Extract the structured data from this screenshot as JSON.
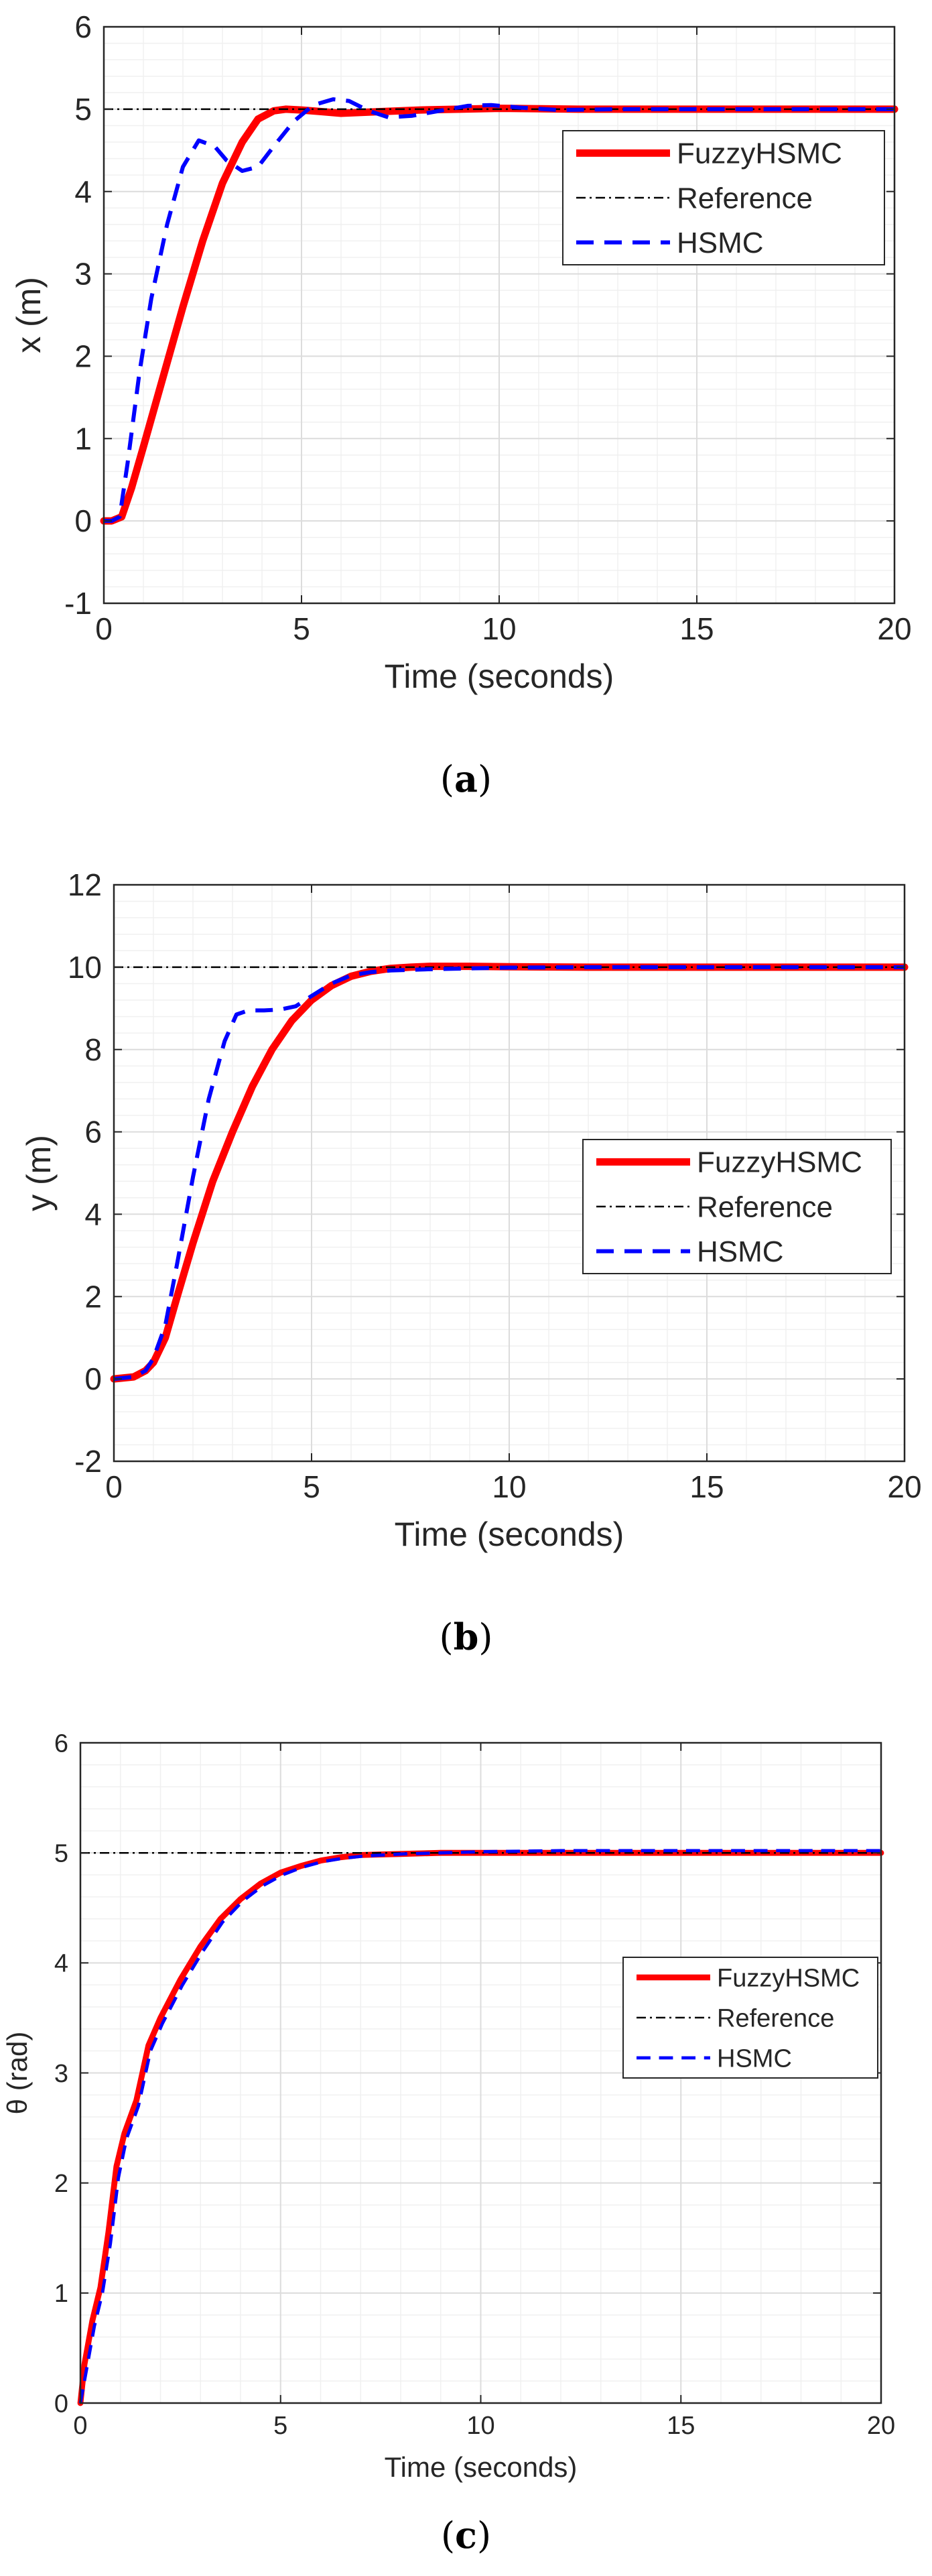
{
  "chart_data": [
    {
      "type": "line",
      "caption_letter": "a",
      "xlabel": "Time (seconds)",
      "ylabel": "x (m)",
      "xlim": [
        0,
        20
      ],
      "ylim": [
        -1,
        6
      ],
      "xticks": [
        "0",
        "5",
        "10",
        "15",
        "20"
      ],
      "yticks": [
        "-1",
        "0",
        "1",
        "2",
        "3",
        "4",
        "5",
        "6"
      ],
      "grid": true,
      "legend_position": "top-right",
      "series": [
        {
          "name": "FuzzyHSMC",
          "color": "#ff0000",
          "style": "solid",
          "x": [
            0,
            0.2,
            0.45,
            0.7,
            1.0,
            1.5,
            2.0,
            2.5,
            3.0,
            3.5,
            3.9,
            4.3,
            4.6,
            5.0,
            5.5,
            6.0,
            6.5,
            7.0,
            8.0,
            9.0,
            10.0,
            12.0,
            15.0,
            20.0
          ],
          "y": [
            0,
            0.0,
            0.05,
            0.4,
            0.9,
            1.75,
            2.6,
            3.4,
            4.1,
            4.6,
            4.88,
            4.98,
            5.0,
            4.99,
            4.97,
            4.95,
            4.96,
            4.97,
            4.99,
            5.0,
            5.01,
            5.0,
            5.0,
            5.0
          ]
        },
        {
          "name": "Reference",
          "color": "#000000",
          "style": "dashdot",
          "x": [
            0,
            20
          ],
          "y": [
            5,
            5
          ]
        },
        {
          "name": "HSMC",
          "color": "#0000ff",
          "style": "dashed",
          "x": [
            0,
            0.2,
            0.4,
            0.6,
            0.9,
            1.2,
            1.6,
            2.0,
            2.4,
            2.8,
            3.1,
            3.5,
            3.9,
            4.3,
            4.8,
            5.3,
            5.8,
            6.2,
            6.7,
            7.2,
            7.8,
            8.5,
            9.2,
            9.8,
            10.5,
            11.5,
            13.0,
            15.0,
            20.0
          ],
          "y": [
            0,
            0.0,
            0.05,
            0.7,
            1.8,
            2.7,
            3.6,
            4.3,
            4.62,
            4.55,
            4.38,
            4.25,
            4.3,
            4.55,
            4.85,
            5.05,
            5.12,
            5.1,
            4.98,
            4.9,
            4.92,
            4.98,
            5.04,
            5.05,
            5.02,
            4.99,
            5.0,
            5.0,
            5.0
          ]
        }
      ]
    },
    {
      "type": "line",
      "caption_letter": "b",
      "xlabel": "Time (seconds)",
      "ylabel": "y (m)",
      "xlim": [
        0,
        20
      ],
      "ylim": [
        -2,
        12
      ],
      "xticks": [
        "0",
        "5",
        "10",
        "15",
        "20"
      ],
      "yticks": [
        "-2",
        "0",
        "2",
        "4",
        "6",
        "8",
        "10",
        "12"
      ],
      "grid": true,
      "legend_position": "right",
      "series": [
        {
          "name": "FuzzyHSMC",
          "color": "#ff0000",
          "style": "solid",
          "x": [
            0,
            0.5,
            0.8,
            1.0,
            1.3,
            1.6,
            2.0,
            2.5,
            3.0,
            3.5,
            4.0,
            4.5,
            5.0,
            5.5,
            6.0,
            6.5,
            7.0,
            7.5,
            8.0,
            9.0,
            10.0,
            12.0,
            15.0,
            20.0
          ],
          "y": [
            0,
            0.05,
            0.2,
            0.4,
            1.0,
            2.0,
            3.3,
            4.8,
            6.0,
            7.1,
            8.0,
            8.7,
            9.2,
            9.55,
            9.78,
            9.9,
            9.97,
            10.0,
            10.02,
            10.02,
            10.01,
            10.0,
            10.0,
            10.0
          ]
        },
        {
          "name": "Reference",
          "color": "#000000",
          "style": "dashdot",
          "x": [
            0,
            20
          ],
          "y": [
            10,
            10
          ]
        },
        {
          "name": "HSMC",
          "color": "#0000ff",
          "style": "dashed",
          "x": [
            0,
            0.5,
            0.8,
            1.0,
            1.3,
            1.6,
            2.0,
            2.4,
            2.8,
            3.1,
            3.4,
            3.8,
            4.2,
            4.6,
            5.0,
            5.5,
            6.0,
            6.5,
            7.0,
            8.0,
            9.0,
            10.0,
            12.0,
            15.0,
            20.0
          ],
          "y": [
            0,
            0.05,
            0.2,
            0.5,
            1.3,
            2.8,
            4.9,
            6.8,
            8.2,
            8.85,
            8.95,
            8.95,
            8.97,
            9.05,
            9.3,
            9.6,
            9.8,
            9.88,
            9.92,
            9.95,
            9.97,
            9.99,
            10.0,
            10.0,
            10.0
          ]
        }
      ]
    },
    {
      "type": "line",
      "caption_letter": "c",
      "xlabel": "Time (seconds)",
      "ylabel": "θ (rad)",
      "xlim": [
        0,
        20
      ],
      "ylim": [
        0,
        6
      ],
      "xticks": [
        "0",
        "5",
        "10",
        "15",
        "20"
      ],
      "yticks": [
        "0",
        "1",
        "2",
        "3",
        "4",
        "5",
        "6"
      ],
      "grid": true,
      "legend_position": "right",
      "series": [
        {
          "name": "FuzzyHSMC",
          "color": "#ff0000",
          "style": "solid",
          "x": [
            0,
            0.1,
            0.3,
            0.5,
            0.7,
            0.9,
            1.1,
            1.4,
            1.7,
            2.0,
            2.5,
            3.0,
            3.5,
            4.0,
            4.5,
            5.0,
            5.5,
            6.0,
            6.5,
            7.0,
            8.0,
            9.0,
            10.0,
            12.0,
            15.0,
            20.0
          ],
          "y": [
            0,
            0.35,
            0.75,
            1.05,
            1.55,
            2.15,
            2.45,
            2.75,
            3.25,
            3.5,
            3.85,
            4.15,
            4.4,
            4.58,
            4.72,
            4.82,
            4.88,
            4.93,
            4.96,
            4.98,
            4.99,
            5.0,
            5.0,
            5.0,
            5.0,
            5.0
          ]
        },
        {
          "name": "Reference",
          "color": "#000000",
          "style": "dashdot",
          "x": [
            0,
            20
          ],
          "y": [
            5,
            5
          ]
        },
        {
          "name": "HSMC",
          "color": "#0000ff",
          "style": "dashed",
          "x": [
            0,
            0.15,
            0.35,
            0.55,
            0.75,
            0.95,
            1.15,
            1.45,
            1.75,
            2.05,
            2.55,
            3.05,
            3.55,
            4.05,
            4.55,
            5.05,
            5.55,
            6.05,
            6.55,
            7.05,
            8.05,
            9.0,
            10.0,
            12.0,
            15.0,
            20.0
          ],
          "y": [
            0,
            0.3,
            0.7,
            1.0,
            1.45,
            2.05,
            2.4,
            2.7,
            3.2,
            3.45,
            3.8,
            4.1,
            4.37,
            4.56,
            4.7,
            4.8,
            4.87,
            4.92,
            4.95,
            4.97,
            4.99,
            5.0,
            5.01,
            5.02,
            5.02,
            5.02
          ]
        }
      ]
    }
  ]
}
